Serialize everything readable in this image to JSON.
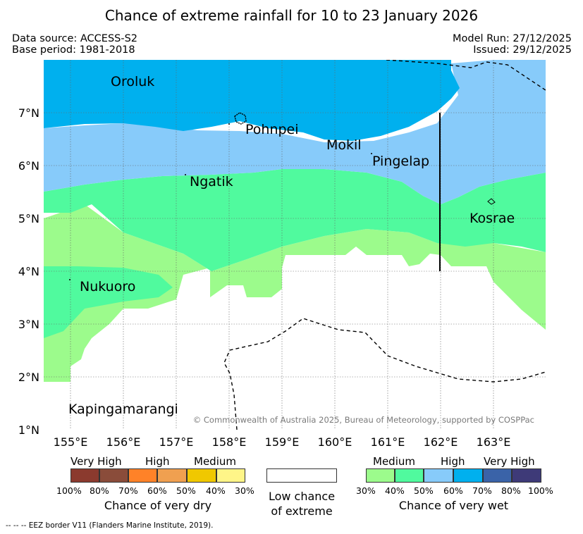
{
  "title": "Chance of extreme rainfall for 10 to 23 January 2026",
  "data_source": "Data source: ACCESS-S2",
  "base_period": "Base period: 1981-2018",
  "model_run": "Model Run: 27/12/2025",
  "issued": "Issued: 29/12/2025",
  "map": {
    "places": [
      "Oroluk",
      "Pohnpei",
      "Mokil",
      "Pingelap",
      "Ngatik",
      "Kosrae",
      "Nukuoro",
      "Kapingamarangi"
    ],
    "lat_labels": [
      "7°N",
      "6°N",
      "5°N",
      "4°N",
      "3°N",
      "2°N",
      "1°N"
    ],
    "lon_labels": [
      "155°E",
      "156°E",
      "157°E",
      "158°E",
      "159°E",
      "160°E",
      "161°E",
      "162°E",
      "163°E"
    ],
    "copyright": "© Commonwealth of Australia 2025, Bureau of Meteorology, supported by COSPPac"
  },
  "legend": {
    "dry": {
      "headers": [
        "Very High",
        "High",
        "Medium"
      ],
      "percents": [
        "100%",
        "80%",
        "70%",
        "60%",
        "50%",
        "40%",
        "30%"
      ],
      "colors": [
        "#8b3a2e",
        "#8a4c3a",
        "#ff8228",
        "#f0a050",
        "#f0c800",
        "#fff588"
      ],
      "caption": "Chance of very dry"
    },
    "low": {
      "line1": "Low chance",
      "line2": "of extreme",
      "color": "#ffffff"
    },
    "wet": {
      "headers": [
        "Medium",
        "High",
        "Very High"
      ],
      "percents": [
        "30%",
        "40%",
        "50%",
        "60%",
        "70%",
        "80%",
        "100%"
      ],
      "colors": [
        "#9cfb8c",
        "#50fa9e",
        "#87cbfa",
        "#00b0ee",
        "#3a63a8",
        "#3e3a78"
      ],
      "caption": "Chance of very wet"
    }
  },
  "footer": "-- -- -- EEZ border V11 (Flanders Marine Institute, 2019)."
}
